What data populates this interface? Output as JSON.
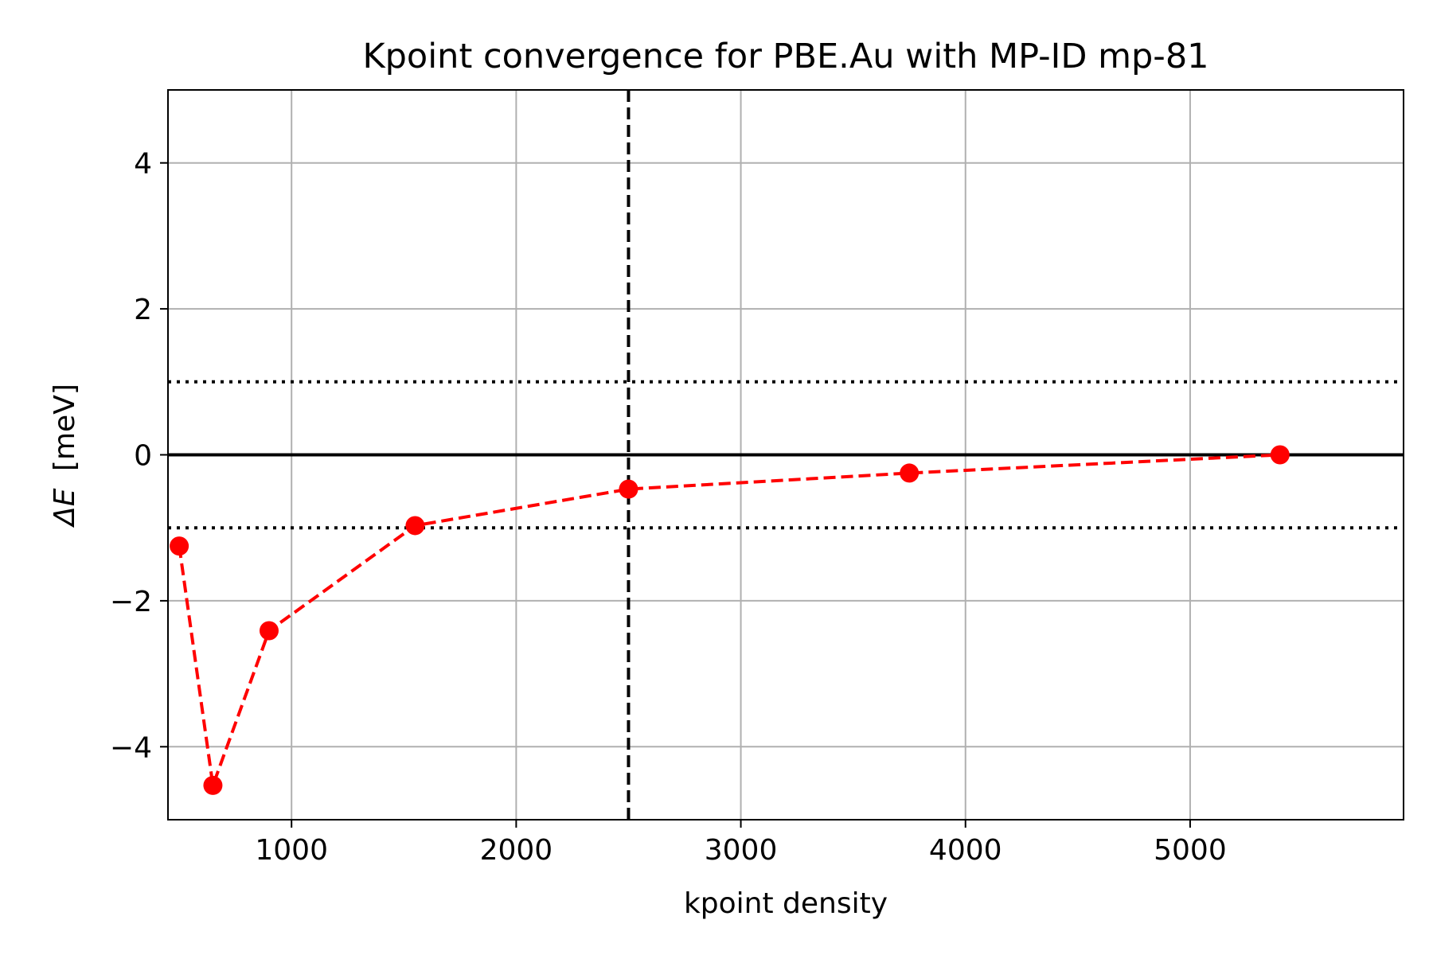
{
  "chart_data": {
    "type": "line",
    "title": "Kpoint convergence for PBE.Au with MP-ID mp-81",
    "xlabel": "kpoint density",
    "ylabel_symbol": "ΔE",
    "ylabel_unit": "[meV]",
    "xlim": [
      450,
      5950
    ],
    "ylim": [
      -5,
      5
    ],
    "x_ticks": [
      1000,
      2000,
      3000,
      4000,
      5000
    ],
    "x_tick_labels": [
      "1000",
      "2000",
      "3000",
      "4000",
      "5000"
    ],
    "y_ticks": [
      -4,
      -2,
      0,
      2,
      4
    ],
    "y_tick_labels": [
      "−4",
      "−2",
      "0",
      "2",
      "4"
    ],
    "grid": true,
    "series": [
      {
        "color": "#ff0000",
        "linestyle": "dashed",
        "marker": "circle",
        "x": [
          500,
          650,
          900,
          1550,
          2500,
          3750,
          5400
        ],
        "y": [
          -1.25,
          -4.53,
          -2.41,
          -0.97,
          -0.47,
          -0.25,
          0.0
        ]
      }
    ],
    "reference_lines": {
      "vertical_dashed_x": 2500,
      "horizontal_solid_y": 0,
      "horizontal_dotted_y": [
        1,
        -1
      ]
    }
  }
}
